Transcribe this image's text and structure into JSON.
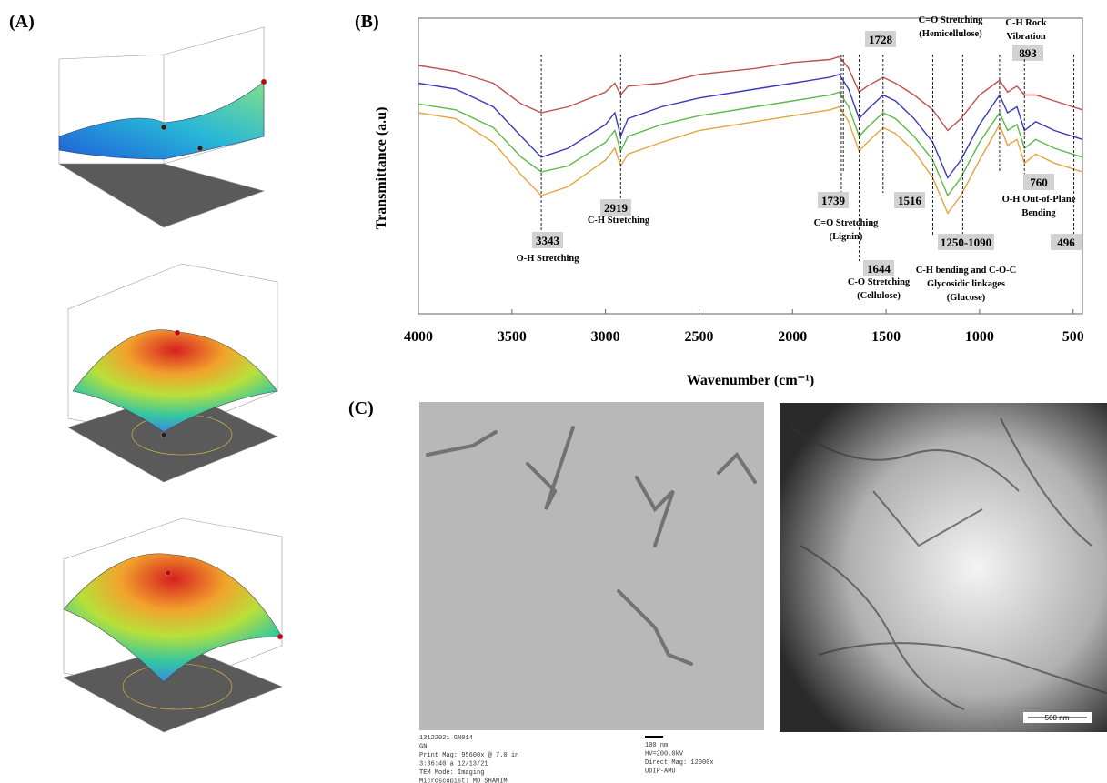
{
  "panels": {
    "a": "(A)",
    "b": "(B)",
    "c": "(C)"
  },
  "chart_data": {
    "type": "line",
    "x_label": "Wavenumber (cm⁻¹)",
    "y_label": "Transmittance (a.u)",
    "x": [
      4000,
      3800,
      3600,
      3450,
      3343,
      3200,
      3000,
      2950,
      2919,
      2880,
      2700,
      2500,
      2200,
      2000,
      1800,
      1750,
      1700,
      1644,
      1600,
      1516,
      1450,
      1350,
      1250,
      1170,
      1100,
      1000,
      893,
      850,
      800,
      760,
      700,
      600,
      450
    ],
    "series": [
      {
        "color": "#c0504d",
        "values": [
          84,
          82,
          78,
          71,
          68,
          70,
          75,
          78,
          74,
          77,
          78,
          81,
          83,
          85,
          86,
          87,
          83,
          75,
          77,
          80,
          78,
          74,
          69,
          62,
          66,
          74,
          79,
          75,
          77,
          74,
          74,
          72,
          69
        ]
      },
      {
        "color": "#3a3ab8",
        "values": [
          78,
          76,
          70,
          60,
          53,
          56,
          64,
          68,
          60,
          66,
          70,
          73,
          76,
          78,
          80,
          81,
          76,
          66,
          69,
          74,
          72,
          66,
          58,
          46,
          52,
          64,
          74,
          68,
          70,
          62,
          65,
          62,
          59
        ]
      },
      {
        "color": "#5cb848",
        "values": [
          71,
          69,
          63,
          53,
          48,
          50,
          58,
          62,
          55,
          60,
          64,
          67,
          70,
          72,
          74,
          75,
          70,
          60,
          63,
          68,
          66,
          60,
          52,
          40,
          46,
          58,
          68,
          62,
          64,
          56,
          59,
          56,
          53
        ]
      },
      {
        "color": "#e3a53c",
        "values": [
          68,
          66,
          58,
          47,
          40,
          43,
          52,
          56,
          50,
          54,
          58,
          62,
          65,
          67,
          69,
          70,
          65,
          55,
          58,
          63,
          61,
          55,
          46,
          34,
          40,
          52,
          64,
          57,
          59,
          51,
          54,
          51,
          48
        ]
      }
    ],
    "xlim": [
      4000,
      450
    ],
    "xticks": [
      4000,
      3500,
      3000,
      2500,
      2000,
      1500,
      1000,
      500
    ],
    "ylim": [
      0,
      100
    ],
    "annotations": [
      {
        "value": 3343,
        "text": [
          "O-H Stretching"
        ]
      },
      {
        "value": 2919,
        "text": [
          "C-H Stretching"
        ]
      },
      {
        "value": 1739,
        "text": [
          "C=O Stretching",
          "(Lignin)"
        ]
      },
      {
        "value": 1728,
        "text": [
          "C=O Stretching",
          "(Hemicellulose)"
        ]
      },
      {
        "value": 1644,
        "text": [
          "C-O Stretching",
          "(Cellulose)"
        ]
      },
      {
        "value": 1516,
        "text": []
      },
      {
        "range": [
          1250,
          1090
        ],
        "label": "1250-1090",
        "text": [
          "C-H bending and  C-O-C",
          "Glycosidic linkages",
          "(Glucose)"
        ]
      },
      {
        "value": 893,
        "text": [
          "C-H Rock",
          "Vibration"
        ]
      },
      {
        "value": 760,
        "text": [
          "O-H Out-of-Plane",
          "Bending"
        ]
      },
      {
        "value": 496,
        "text": []
      }
    ]
  },
  "tem": {
    "left_info": [
      "13122021 GN014",
      "GN",
      "Print Mag:  95600x @ 7.0 in",
      "3:36:40 a 12/13/21",
      "TEM Mode: Imaging",
      "Microscopist: MD SHAMIM"
    ],
    "right_info": [
      "100 nm",
      "HV=200.0kV",
      "Direct Mag: 12000x",
      "UDIP-AMU"
    ],
    "scale_bar": "500 nm"
  }
}
